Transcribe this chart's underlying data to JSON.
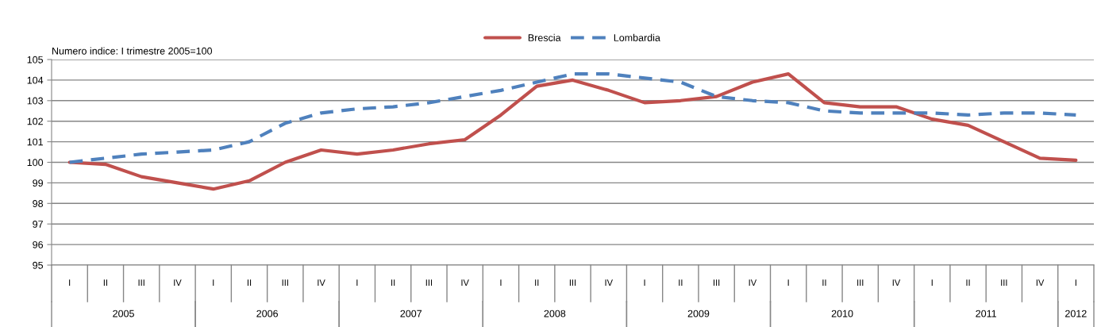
{
  "chart_data": {
    "type": "line",
    "subtitle": "Numero indice: I trimestre 2005=100",
    "categories": [
      "I",
      "II",
      "III",
      "IV",
      "I",
      "II",
      "III",
      "IV",
      "I",
      "II",
      "III",
      "IV",
      "I",
      "II",
      "III",
      "IV",
      "I",
      "II",
      "III",
      "IV",
      "I",
      "II",
      "III",
      "IV",
      "I",
      "II",
      "III",
      "IV",
      "I"
    ],
    "annotations": [
      "2005",
      "2006",
      "2007",
      "2008",
      "2009",
      "2010",
      "2011",
      "2012"
    ],
    "series": [
      {
        "name": "Brescia",
        "color": "#c0504d",
        "line_style": "solid",
        "values": [
          100.0,
          99.9,
          99.3,
          99.0,
          98.7,
          99.1,
          100.0,
          100.6,
          100.4,
          100.6,
          100.9,
          101.1,
          102.3,
          103.7,
          104.0,
          103.5,
          102.9,
          103.0,
          103.2,
          103.9,
          104.3,
          102.9,
          102.7,
          102.7,
          102.1,
          101.8,
          101.0,
          100.2,
          100.1
        ]
      },
      {
        "name": "Lombardia",
        "color": "#4f81bd",
        "line_style": "dashed",
        "values": [
          100.0,
          100.2,
          100.4,
          100.5,
          100.6,
          101.0,
          101.9,
          102.4,
          102.6,
          102.7,
          102.9,
          103.2,
          103.5,
          103.9,
          104.3,
          104.3,
          104.1,
          103.9,
          103.2,
          103.0,
          102.9,
          102.5,
          102.4,
          102.4,
          102.4,
          102.3,
          102.4,
          102.4,
          102.3
        ]
      }
    ],
    "ylim": [
      95,
      105
    ],
    "yticks": [
      95,
      96,
      97,
      98,
      99,
      100,
      101,
      102,
      103,
      104,
      105
    ],
    "grid": "y",
    "legend": "top",
    "marker": "none"
  }
}
